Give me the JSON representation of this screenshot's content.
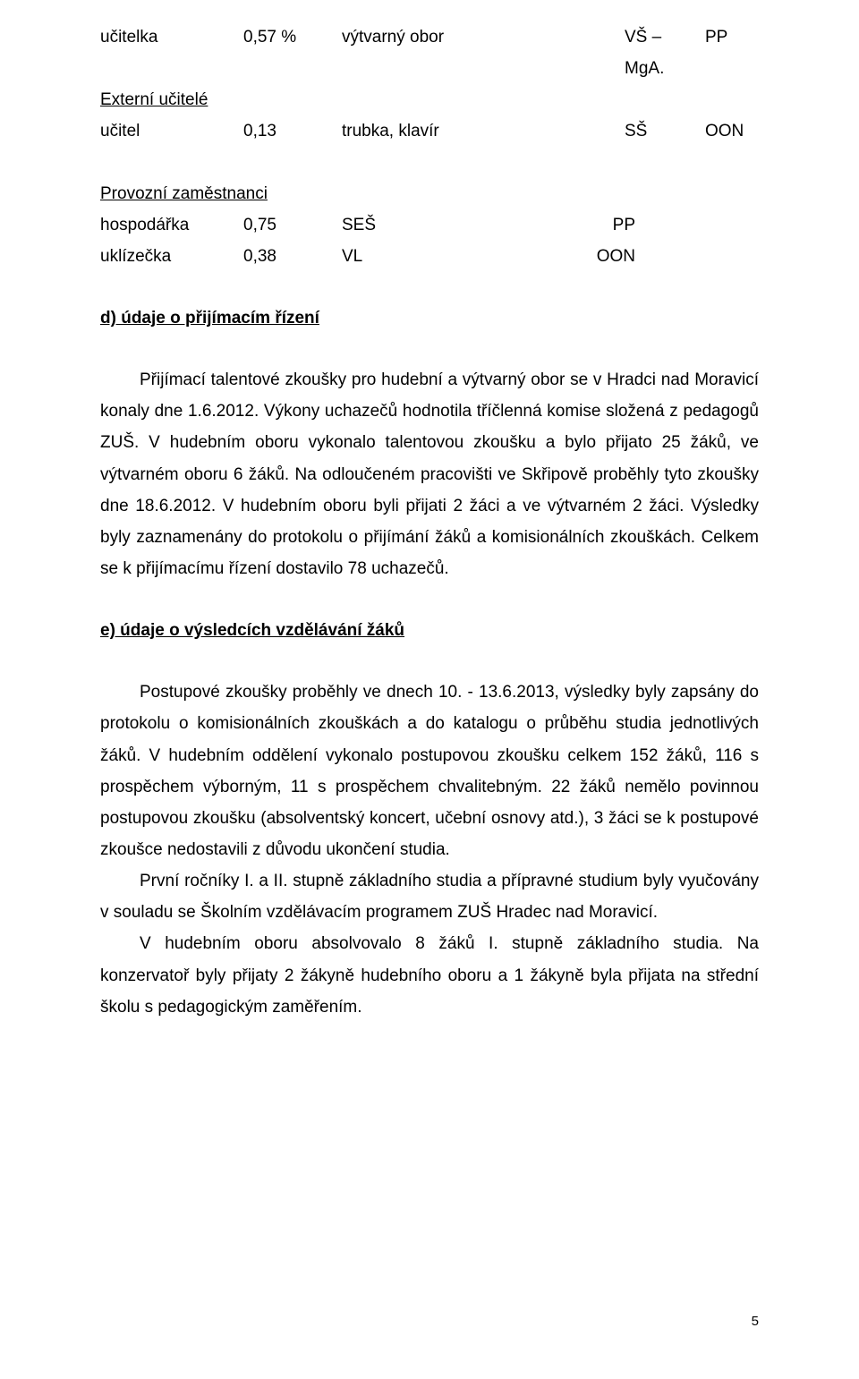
{
  "rows": {
    "r1": {
      "role": "učitelka",
      "pct": "0,57 %",
      "subject": "výtvarný obor",
      "deg": "VŠ – MgA.",
      "tag": "PP"
    },
    "r2_heading": "Externí učitelé",
    "r2": {
      "role": "učitel",
      "pct": "0,13",
      "subject": "trubka, klavír",
      "deg": "SŠ",
      "tag": "OON"
    },
    "r3_heading": "Provozní zaměstnanci",
    "r3": {
      "role": "hospodářka",
      "pct": "0,75",
      "deg": "SEŠ",
      "tag": "PP"
    },
    "r4": {
      "role": "uklízečka",
      "pct": "0,38",
      "deg": "VL",
      "tag": "OON"
    }
  },
  "section_d": {
    "heading": "d) údaje o přijímacím řízení",
    "para": "Přijímací talentové zkoušky pro hudební a  výtvarný obor se v Hradci nad Moravicí konaly dne 1.6.2012. Výkony uchazečů hodnotila tříčlenná komise složená z pedagogů ZUŠ. V hudebním oboru vykonalo talentovou zkoušku a bylo přijato 25 žáků, ve výtvarném oboru 6 žáků. Na odloučeném pracovišti ve Skřipově proběhly tyto zkoušky dne 18.6.2012. V hudebním oboru byli přijati 2 žáci a ve výtvarném 2 žáci. Výsledky byly zaznamenány do protokolu o přijímání žáků a komisionálních zkouškách. Celkem se k přijímacímu řízení dostavilo 78 uchazečů."
  },
  "section_e": {
    "heading": "e) údaje o výsledcích vzdělávání žáků",
    "para1": "Postupové zkoušky  proběhly ve dnech  10. - 13.6.2013, výsledky byly zapsány do protokolu o komisionálních zkouškách a do katalogu o průběhu studia jednotlivých žáků. V hudebním oddělení vykonalo postupovou zkoušku celkem  152 žáků, 116 s prospěchem výborným, 11 s prospěchem chvalitebným. 22 žáků nemělo povinnou postupovou zkoušku (absolventský koncert, učební osnovy atd.), 3 žáci se k postupové zkoušce nedostavili z důvodu ukončení studia.",
    "para2": "První ročníky I. a II. stupně základního studia a přípravné studium byly vyučovány v souladu se Školním vzdělávacím programem ZUŠ Hradec nad Moravicí.",
    "para3": "V hudebním oboru absolvovalo 8 žáků I. stupně základního studia. Na konzervatoř byly přijaty 2 žákyně hudebního oboru a 1 žákyně byla přijata na střední školu s pedagogickým zaměřením."
  },
  "pagenum": "5"
}
